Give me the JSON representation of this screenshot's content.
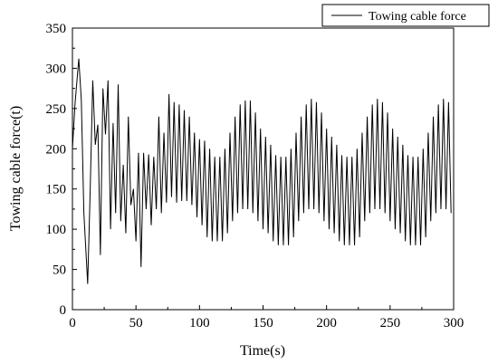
{
  "chart_data": {
    "type": "line",
    "title": "",
    "xlabel": "Time(s)",
    "ylabel": "Towing cable force(t)",
    "xlim": [
      0,
      300
    ],
    "ylim": [
      0,
      350
    ],
    "xticks": [
      0,
      50,
      100,
      150,
      200,
      250,
      300
    ],
    "yticks": [
      0,
      50,
      100,
      150,
      200,
      250,
      300,
      350
    ],
    "grid": false,
    "legend": "top-right",
    "series": [
      {
        "name": "Towing cable force",
        "color": "#000000",
        "x": [
          0,
          2,
          5,
          7,
          9,
          12,
          14,
          16,
          18,
          20,
          22,
          24,
          26,
          28,
          30,
          32,
          34,
          36,
          38,
          40,
          42,
          44,
          46,
          48,
          50,
          52,
          54,
          56,
          58,
          60,
          62,
          64,
          66,
          68,
          70,
          72,
          74,
          76,
          78,
          80,
          82,
          84,
          86,
          88,
          90,
          92,
          94,
          96,
          98,
          100,
          102,
          104,
          106,
          108,
          110,
          112,
          114,
          116,
          118,
          120,
          122,
          124,
          126,
          128,
          130,
          132,
          134,
          136,
          138,
          140,
          142,
          144,
          146,
          148,
          150,
          152,
          154,
          156,
          158,
          160,
          162,
          164,
          166,
          168,
          170,
          172,
          174,
          176,
          178,
          180,
          182,
          184,
          186,
          188,
          190,
          192,
          194,
          196,
          198,
          200,
          202,
          204,
          206,
          208,
          210,
          212,
          214,
          216,
          218,
          220,
          222,
          224,
          226,
          228,
          230,
          232,
          234,
          236,
          238,
          240,
          242,
          244,
          246,
          248,
          250,
          252,
          254,
          256,
          258,
          260,
          262,
          264,
          266,
          268,
          270,
          272,
          274,
          276,
          278,
          280,
          282,
          284,
          286,
          288,
          290,
          292,
          294,
          296,
          298
        ],
        "y": [
          200,
          255,
          312,
          260,
          120,
          32,
          150,
          285,
          205,
          230,
          68,
          275,
          218,
          285,
          100,
          232,
          120,
          280,
          110,
          180,
          95,
          240,
          130,
          150,
          85,
          195,
          53,
          195,
          125,
          193,
          105,
          190,
          125,
          240,
          120,
          220,
          133,
          268,
          140,
          258,
          133,
          255,
          135,
          248,
          135,
          240,
          130,
          220,
          115,
          212,
          105,
          210,
          90,
          200,
          85,
          190,
          85,
          190,
          85,
          200,
          95,
          220,
          110,
          240,
          120,
          255,
          125,
          260,
          125,
          260,
          120,
          245,
          110,
          225,
          100,
          215,
          95,
          205,
          85,
          192,
          80,
          190,
          80,
          190,
          80,
          200,
          90,
          220,
          110,
          240,
          120,
          255,
          125,
          262,
          125,
          258,
          120,
          245,
          110,
          225,
          100,
          215,
          95,
          205,
          85,
          192,
          80,
          190,
          80,
          190,
          80,
          200,
          90,
          220,
          110,
          240,
          120,
          255,
          125,
          262,
          125,
          258,
          120,
          245,
          110,
          225,
          100,
          215,
          95,
          205,
          85,
          192,
          80,
          190,
          80,
          190,
          80,
          200,
          90,
          220,
          110,
          240,
          120,
          255,
          125,
          262,
          125,
          258,
          120
        ]
      }
    ]
  }
}
